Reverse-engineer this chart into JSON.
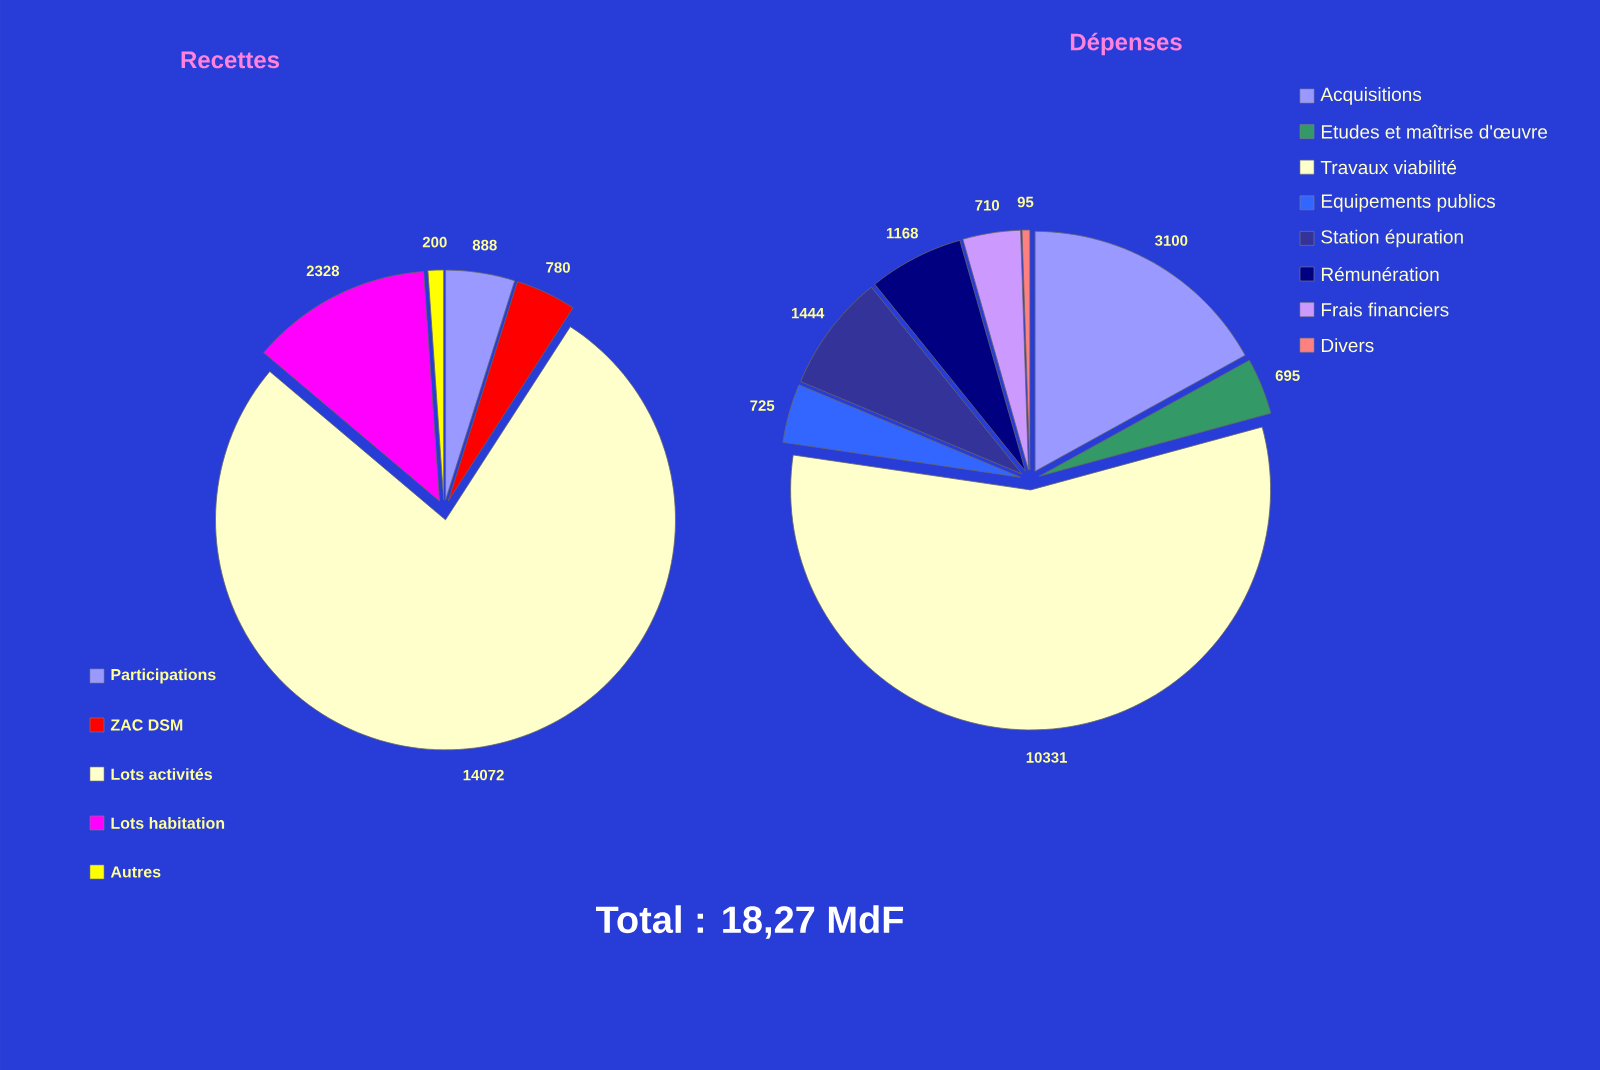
{
  "chart_data": [
    {
      "type": "pie",
      "title": "Recettes",
      "categories": [
        "Participations",
        "ZAC DSM",
        "Lots activités",
        "Lots habitation",
        "Autres"
      ],
      "values": [
        888,
        780,
        14072,
        2328,
        200
      ],
      "colors": [
        "#9999ff",
        "#ff0000",
        "#ffffcc",
        "#ff00ff",
        "#ffff00"
      ],
      "data_labels": true,
      "legend": "bottom left",
      "annotations": [
        "Total : 18,27 MdF"
      ]
    },
    {
      "type": "pie",
      "title": "Dépenses",
      "categories": [
        "Acquisitions",
        "Etudes et maîtrise d'œuvre",
        "Travaux viabilité",
        "Equipements publics",
        "Station épuration",
        "Rémunération",
        "Frais financiers",
        "Divers"
      ],
      "values": [
        3100,
        695,
        10331,
        725,
        1444,
        1168,
        710,
        95
      ],
      "colors": [
        "#9999ff",
        "#339966",
        "#ffffcc",
        "#3366ff",
        "#333399",
        "#000080",
        "#cc99ff",
        "#ff8080"
      ],
      "data_labels": true,
      "legend": "top right"
    }
  ]
}
